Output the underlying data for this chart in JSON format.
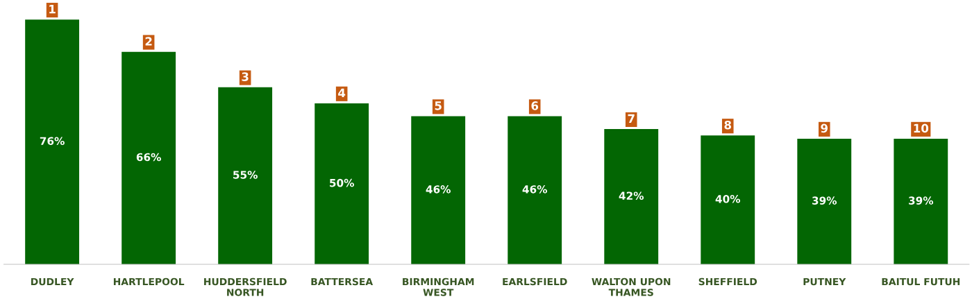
{
  "chart_data": {
    "type": "bar",
    "categories": [
      "DUDLEY",
      "HARTLEPOOL",
      "HUDDERSFIELD\nNORTH",
      "BATTERSEA",
      "BIRMINGHAM\nWEST",
      "EARLSFIELD",
      "WALTON UPON\nTHAMES",
      "SHEFFIELD",
      "PUTNEY",
      "BAITUL FUTUH"
    ],
    "values": [
      76,
      66,
      55,
      50,
      46,
      46,
      42,
      40,
      39,
      39
    ],
    "value_labels": [
      "76%",
      "66%",
      "55%",
      "50%",
      "46%",
      "46%",
      "42%",
      "40%",
      "39%",
      "39%"
    ],
    "color": "#036603",
    "tick_labels": "x",
    "grid": false,
    "legend": false,
    "annotations": [
      {
        "text": "1",
        "x": "DUDLEY",
        "y": 76
      },
      {
        "text": "2",
        "x": "HARTLEPOOL",
        "y": 66
      },
      {
        "text": "3",
        "x": "HUDDERSFIELD\nNORTH",
        "y": 55
      },
      {
        "text": "4",
        "x": "BATTERSEA",
        "y": 50
      },
      {
        "text": "5",
        "x": "BIRMINGHAM\nWEST",
        "y": 46
      },
      {
        "text": "6",
        "x": "EARLSFIELD",
        "y": 46
      },
      {
        "text": "7",
        "x": "WALTON UPON\nTHAMES",
        "y": 42
      },
      {
        "text": "8",
        "x": "SHEFFIELD",
        "y": 40
      },
      {
        "text": "9",
        "x": "PUTNEY",
        "y": 39
      },
      {
        "text": "10",
        "x": "BAITUL FUTUH",
        "y": 39
      }
    ]
  }
}
